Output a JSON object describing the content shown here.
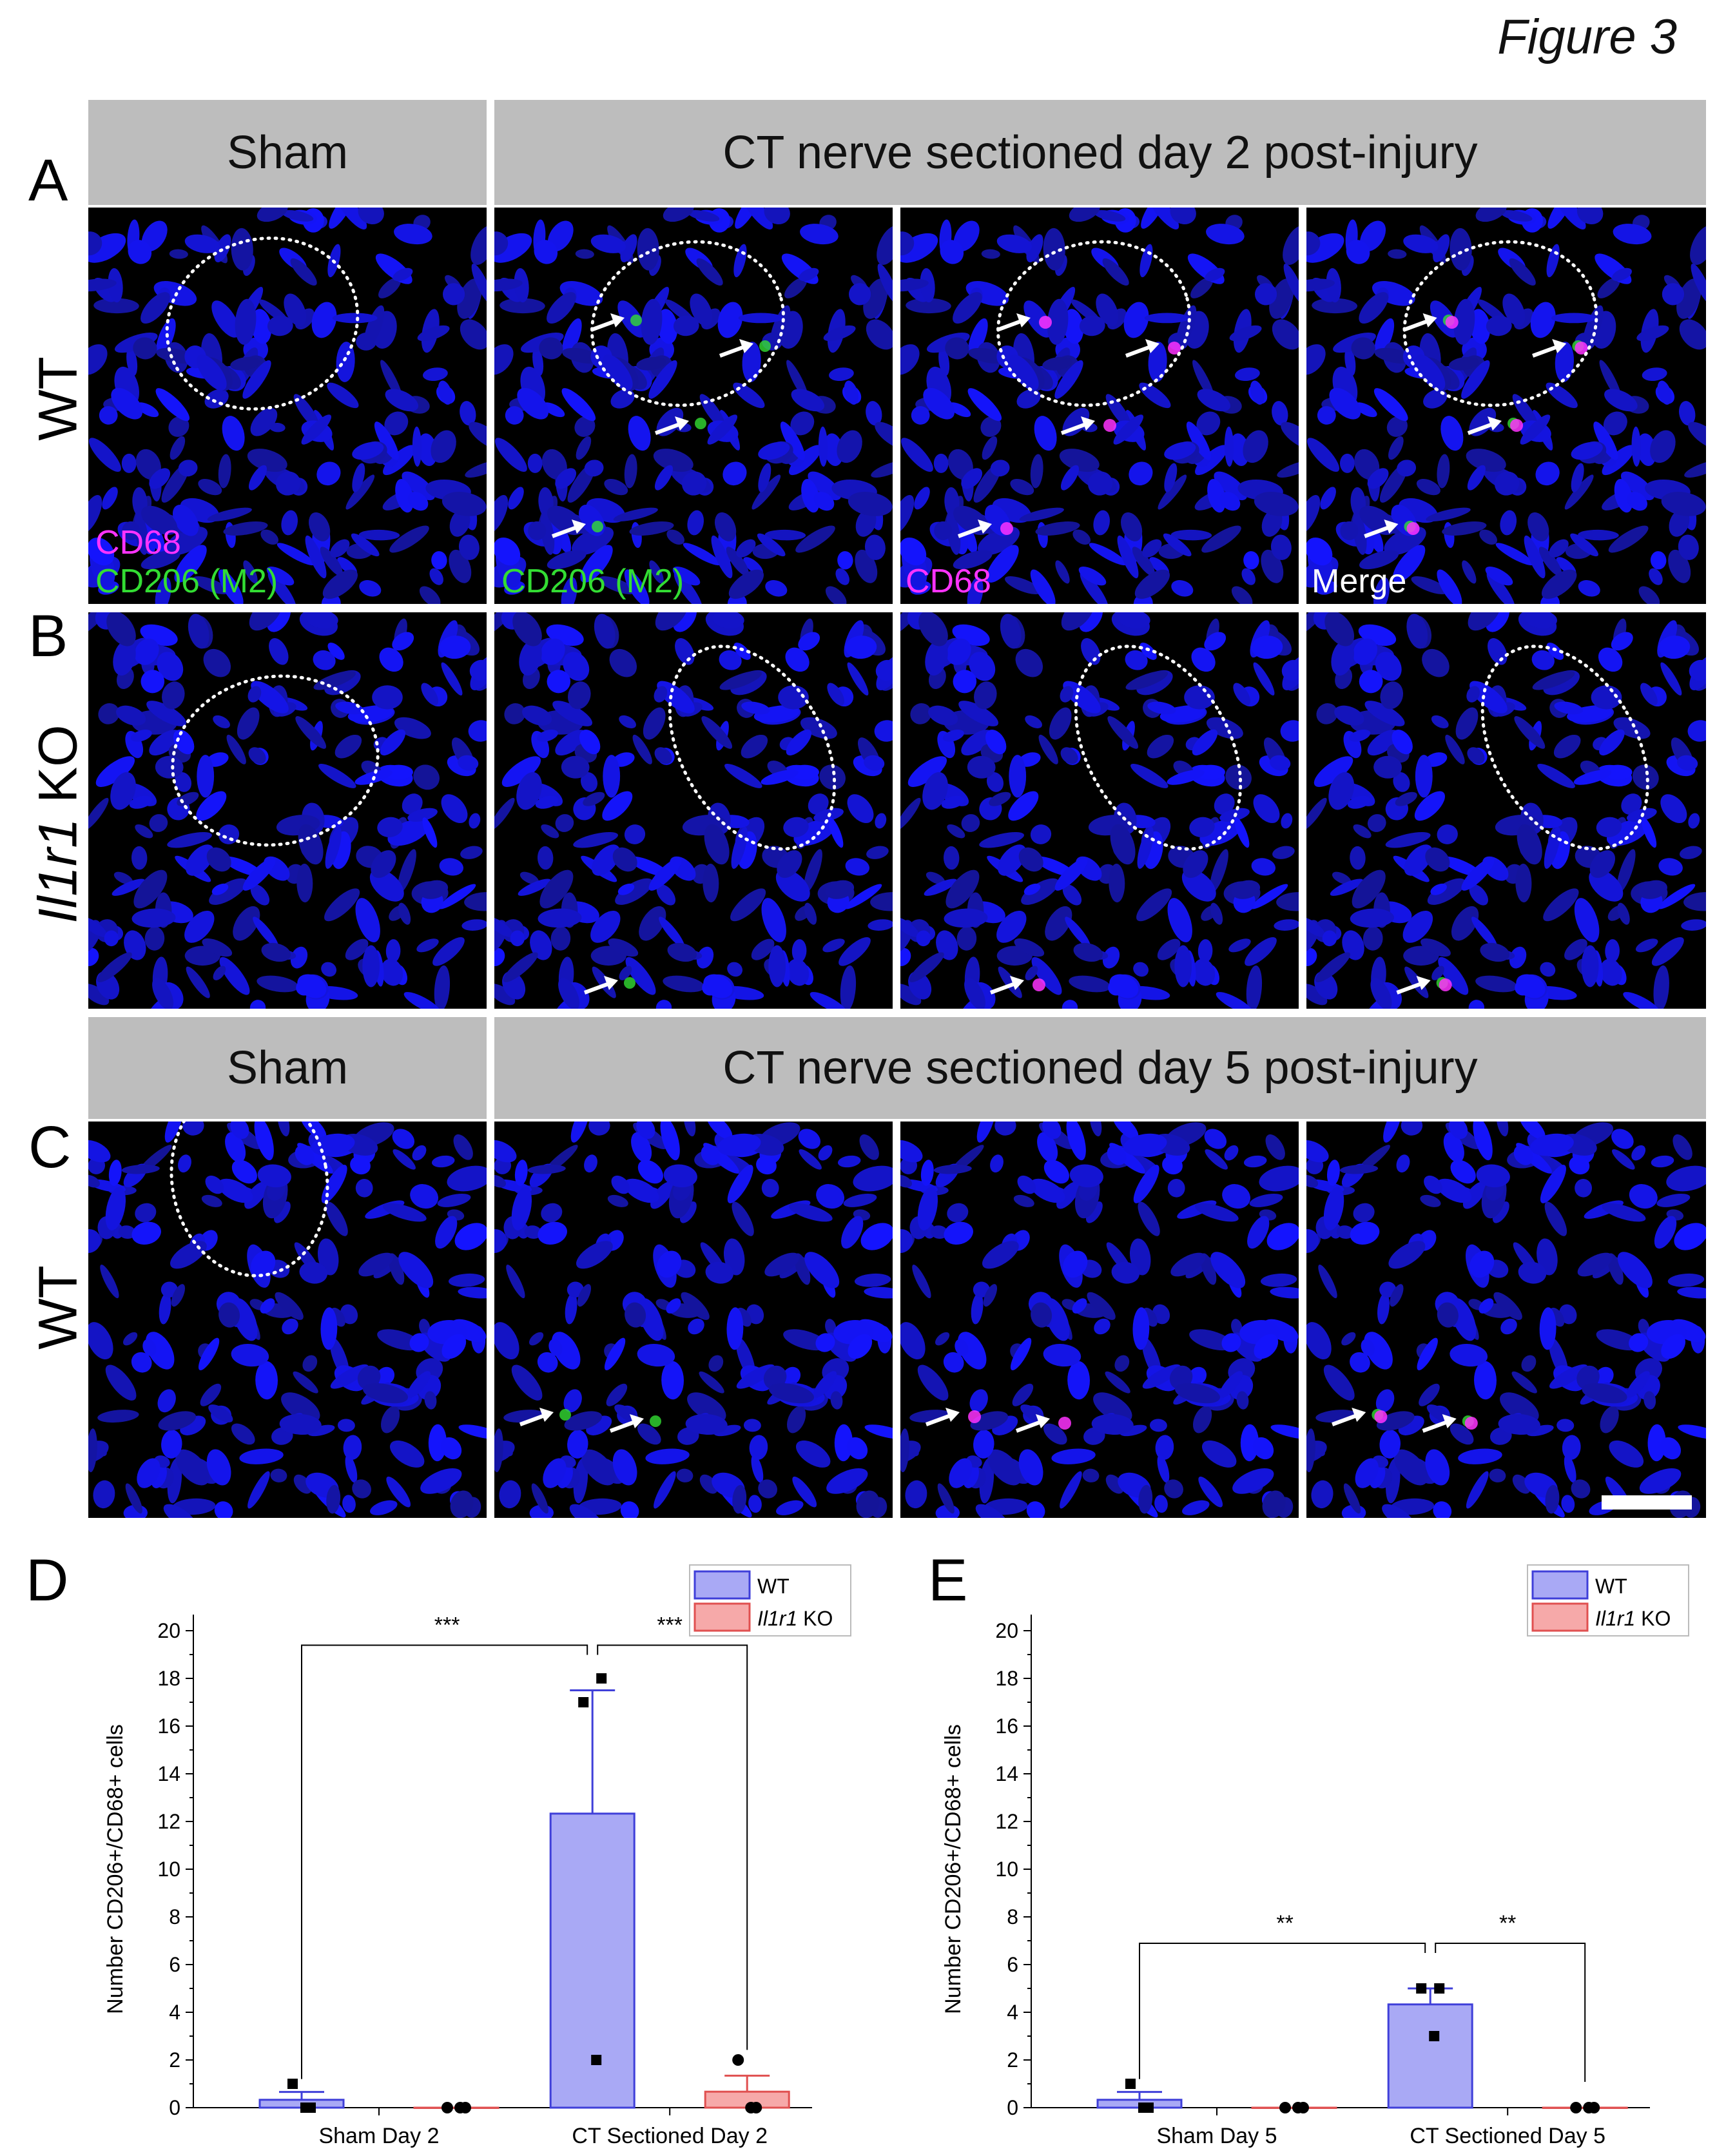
{
  "figure_title": "Figure 3",
  "panels": {
    "A": {
      "letter": "A",
      "row_label": "WT"
    },
    "B": {
      "letter": "B",
      "row_label_italic": "Il1r1",
      "row_label_rest": " KO"
    },
    "C": {
      "letter": "C",
      "row_label": "WT"
    },
    "D": {
      "letter": "D"
    },
    "E": {
      "letter": "E"
    }
  },
  "headers": {
    "sham": "Sham",
    "day2": "CT nerve sectioned day 2 post-injury",
    "day5": "CT nerve sectioned day 5 post-injury"
  },
  "channel_labels": {
    "cd68": "CD68",
    "cd206": "CD206 (M2)",
    "merge": "Merge"
  },
  "colors": {
    "nuclei": "#1a1aff",
    "cd68": "#ff33ff",
    "cd206": "#33dd33",
    "header_bg": "#bdbdbd",
    "wt_fill": "#a9a9f5",
    "wt_stroke": "#3f3fd9",
    "ko_fill": "#f6a9a9",
    "ko_stroke": "#e05050"
  },
  "chart_data": [
    {
      "type": "bar",
      "panel": "D",
      "categories": [
        "Sham Day 2",
        "CT Sectioned Day 2"
      ],
      "ylabel": "Number CD206+/CD68+ cells",
      "ylim": [
        0,
        20
      ],
      "yticks": [
        0,
        2,
        4,
        6,
        8,
        10,
        12,
        14,
        16,
        18,
        20
      ],
      "legend": {
        "placement": "top-right",
        "entries": [
          {
            "label": "WT"
          },
          {
            "label_italic": "Il1r1",
            "label_rest": " KO"
          }
        ]
      },
      "series": [
        {
          "name": "WT",
          "values": [
            0.33,
            12.33
          ],
          "errors": [
            0.33,
            5.17
          ],
          "points": [
            [
              1,
              0,
              0
            ],
            [
              17,
              18,
              2
            ]
          ]
        },
        {
          "name": "Il1r1 KO",
          "values": [
            0,
            0.67
          ],
          "errors": [
            0,
            0.67
          ],
          "points": [
            [
              0,
              0,
              0
            ],
            [
              2,
              0,
              0
            ]
          ]
        }
      ],
      "significance": [
        {
          "from": "Sham Day 2 WT",
          "to": "CT Sectioned Day 2 WT",
          "label": "***"
        },
        {
          "from": "CT Sectioned Day 2 WT",
          "to": "CT Sectioned Day 2 KO",
          "label": "***"
        }
      ]
    },
    {
      "type": "bar",
      "panel": "E",
      "categories": [
        "Sham Day 5",
        "CT Sectioned Day 5"
      ],
      "ylabel": "Number CD206+/CD68+ cells",
      "ylim": [
        0,
        20
      ],
      "yticks": [
        0,
        2,
        4,
        6,
        8,
        10,
        12,
        14,
        16,
        18,
        20
      ],
      "legend": {
        "placement": "top-right",
        "entries": [
          {
            "label": "WT"
          },
          {
            "label_italic": "Il1r1",
            "label_rest": " KO"
          }
        ]
      },
      "series": [
        {
          "name": "WT",
          "values": [
            0.33,
            4.33
          ],
          "errors": [
            0.33,
            0.67
          ],
          "points": [
            [
              1,
              0,
              0
            ],
            [
              5,
              5,
              3
            ]
          ]
        },
        {
          "name": "Il1r1 KO",
          "values": [
            0,
            0
          ],
          "errors": [
            0,
            0
          ],
          "points": [
            [
              0,
              0,
              0
            ],
            [
              0,
              0,
              0
            ]
          ]
        }
      ],
      "significance": [
        {
          "from": "Sham Day 5 WT",
          "to": "CT Sectioned Day 5 WT",
          "label": "**"
        },
        {
          "from": "CT Sectioned Day 5 WT",
          "to": "CT Sectioned Day 5 KO",
          "label": "**"
        }
      ]
    }
  ]
}
